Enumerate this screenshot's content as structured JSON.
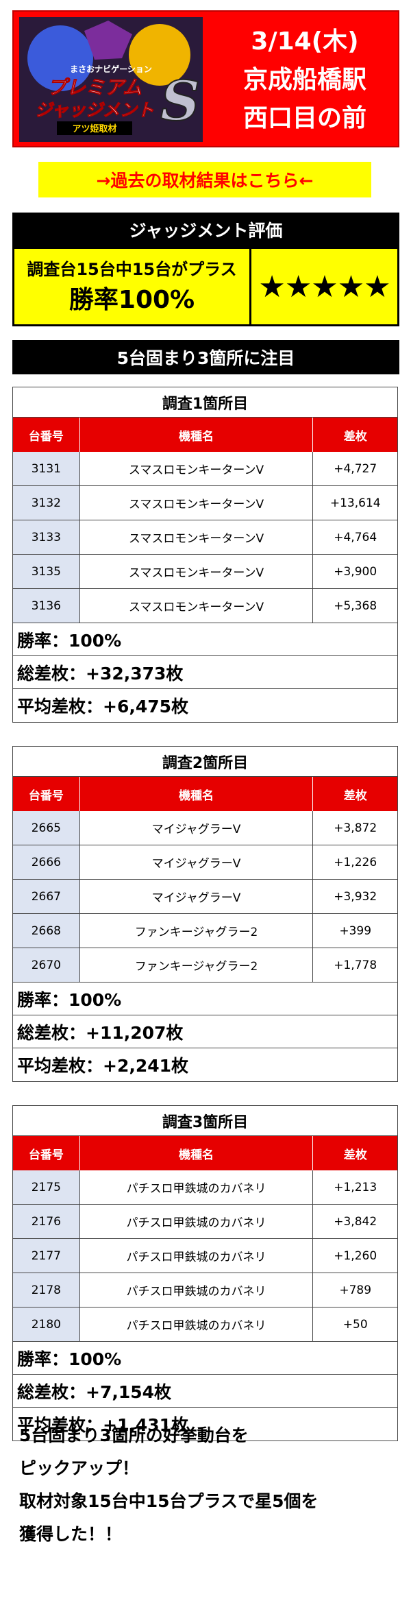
{
  "header": {
    "logo": {
      "top_text": "まさおナビゲーション",
      "main_text": "プレミアム\nジャッジメント",
      "letter": "S",
      "sub_text": "アツ姫取材"
    },
    "date": "3/14(木)",
    "station": "京成船橋駅",
    "location": "西口目の前"
  },
  "past_link": "→過去の取材結果はこちら←",
  "judgment": {
    "title": "ジャッジメント評価",
    "summary": "調査台15台中15台がプラス",
    "win_rate": "勝率100%",
    "stars": "★★★★★"
  },
  "focus_title": "5台固まり3箇所に注目",
  "columns": {
    "machine_no": "台番号",
    "model": "機種名",
    "diff": "差枚"
  },
  "surveys": [
    {
      "title": "調査1箇所目",
      "rows": [
        {
          "no": "3131",
          "model": "スマスロモンキーターンV",
          "diff": "+4,727"
        },
        {
          "no": "3132",
          "model": "スマスロモンキーターンV",
          "diff": "+13,614"
        },
        {
          "no": "3133",
          "model": "スマスロモンキーターンV",
          "diff": "+4,764"
        },
        {
          "no": "3135",
          "model": "スマスロモンキーターンV",
          "diff": "+3,900"
        },
        {
          "no": "3136",
          "model": "スマスロモンキーターンV",
          "diff": "+5,368"
        }
      ],
      "win_rate": "勝率：100%",
      "total": "総差枚：+32,373枚",
      "average": "平均差枚：+6,475枚"
    },
    {
      "title": "調査2箇所目",
      "rows": [
        {
          "no": "2665",
          "model": "マイジャグラーV",
          "diff": "+3,872"
        },
        {
          "no": "2666",
          "model": "マイジャグラーV",
          "diff": "+1,226"
        },
        {
          "no": "2667",
          "model": "マイジャグラーV",
          "diff": "+3,932"
        },
        {
          "no": "2668",
          "model": "ファンキージャグラー2",
          "diff": "+399"
        },
        {
          "no": "2670",
          "model": "ファンキージャグラー2",
          "diff": "+1,778"
        }
      ],
      "win_rate": "勝率：100%",
      "total": "総差枚：+11,207枚",
      "average": "平均差枚：+2,241枚"
    },
    {
      "title": "調査3箇所目",
      "rows": [
        {
          "no": "2175",
          "model": "パチスロ甲鉄城のカバネリ",
          "diff": "+1,213"
        },
        {
          "no": "2176",
          "model": "パチスロ甲鉄城のカバネリ",
          "diff": "+3,842"
        },
        {
          "no": "2177",
          "model": "パチスロ甲鉄城のカバネリ",
          "diff": "+1,260"
        },
        {
          "no": "2178",
          "model": "パチスロ甲鉄城のカバネリ",
          "diff": "+789"
        },
        {
          "no": "2180",
          "model": "パチスロ甲鉄城のカバネリ",
          "diff": "+50"
        }
      ],
      "win_rate": "勝率：100%",
      "total": "総差枚：+7,154枚",
      "average": "平均差枚：+1,431枚"
    }
  ],
  "summary": [
    "5台固まり3箇所の好挙動台を",
    "ピックアップ！",
    "取材対象15台中15台プラスで星5個を",
    "獲得した！！"
  ]
}
